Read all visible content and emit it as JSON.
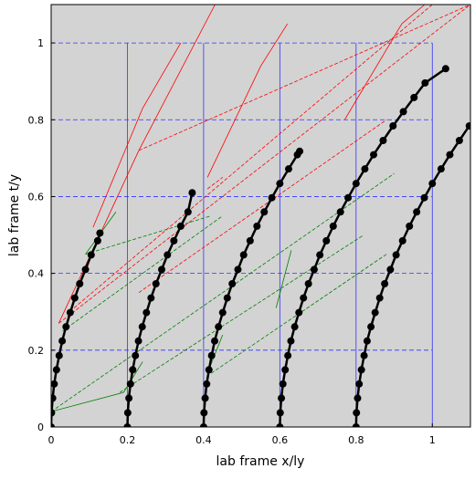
{
  "chart_data": {
    "type": "line",
    "title": "",
    "xlabel": "lab frame x/ly",
    "ylabel": "lab frame t/y",
    "xlim": [
      0,
      1.1
    ],
    "ylim": [
      0,
      1.1
    ],
    "x_ticks": [
      "0",
      "0.2",
      "0.4",
      "0.6",
      "0.8",
      "1"
    ],
    "y_ticks": [
      "0",
      "0.2",
      "0.4",
      "0.6",
      "0.8",
      "1"
    ],
    "x_tick_values": [
      0,
      0.2,
      0.4,
      0.6,
      0.8,
      1
    ],
    "y_tick_values": [
      0,
      0.2,
      0.4,
      0.6,
      0.8,
      1
    ],
    "grid": {
      "vertical_lines_x": [
        0.2,
        0.4,
        0.6,
        0.8,
        1
      ],
      "horizontal_lines_y": [
        0.2,
        0.4,
        0.6,
        0.8,
        1
      ],
      "grid_range": [
        0,
        1
      ],
      "color": "#3333ff"
    },
    "colors": {
      "plot_background": "#d3d3d3",
      "worldline": "#000000",
      "marker": "#000000",
      "red": "#ff0000",
      "green": "#008000"
    },
    "worldlines": [
      {
        "points": [
          [
            0,
            0
          ],
          [
            0.001,
            0.037
          ],
          [
            0.004,
            0.075
          ],
          [
            0.008,
            0.112
          ],
          [
            0.014,
            0.149
          ],
          [
            0.021,
            0.186
          ],
          [
            0.029,
            0.224
          ],
          [
            0.039,
            0.261
          ],
          [
            0.05,
            0.298
          ],
          [
            0.062,
            0.336
          ],
          [
            0.075,
            0.373
          ],
          [
            0.09,
            0.41
          ],
          [
            0.105,
            0.448
          ],
          [
            0.122,
            0.485
          ],
          [
            0.128,
            0.505
          ]
        ]
      },
      {
        "points": [
          [
            0.2,
            0
          ],
          [
            0.201,
            0.037
          ],
          [
            0.204,
            0.075
          ],
          [
            0.208,
            0.112
          ],
          [
            0.214,
            0.149
          ],
          [
            0.221,
            0.186
          ],
          [
            0.229,
            0.224
          ],
          [
            0.239,
            0.261
          ],
          [
            0.25,
            0.298
          ],
          [
            0.262,
            0.336
          ],
          [
            0.275,
            0.373
          ],
          [
            0.29,
            0.41
          ],
          [
            0.305,
            0.448
          ],
          [
            0.322,
            0.485
          ],
          [
            0.34,
            0.523
          ],
          [
            0.359,
            0.56
          ],
          [
            0.37,
            0.61
          ]
        ]
      },
      {
        "points": [
          [
            0.4,
            0
          ],
          [
            0.401,
            0.037
          ],
          [
            0.404,
            0.075
          ],
          [
            0.408,
            0.112
          ],
          [
            0.414,
            0.149
          ],
          [
            0.421,
            0.186
          ],
          [
            0.429,
            0.224
          ],
          [
            0.439,
            0.261
          ],
          [
            0.45,
            0.298
          ],
          [
            0.462,
            0.336
          ],
          [
            0.475,
            0.373
          ],
          [
            0.49,
            0.41
          ],
          [
            0.505,
            0.448
          ],
          [
            0.522,
            0.485
          ],
          [
            0.54,
            0.523
          ],
          [
            0.559,
            0.56
          ],
          [
            0.579,
            0.597
          ],
          [
            0.6,
            0.634
          ],
          [
            0.623,
            0.672
          ],
          [
            0.646,
            0.709
          ],
          [
            0.652,
            0.718
          ]
        ]
      },
      {
        "points": [
          [
            0.6,
            0
          ],
          [
            0.601,
            0.037
          ],
          [
            0.604,
            0.075
          ],
          [
            0.608,
            0.112
          ],
          [
            0.614,
            0.149
          ],
          [
            0.621,
            0.186
          ],
          [
            0.629,
            0.224
          ],
          [
            0.639,
            0.261
          ],
          [
            0.65,
            0.298
          ],
          [
            0.662,
            0.336
          ],
          [
            0.675,
            0.373
          ],
          [
            0.69,
            0.41
          ],
          [
            0.705,
            0.448
          ],
          [
            0.722,
            0.485
          ],
          [
            0.74,
            0.523
          ],
          [
            0.759,
            0.56
          ],
          [
            0.779,
            0.597
          ],
          [
            0.8,
            0.634
          ],
          [
            0.823,
            0.672
          ],
          [
            0.846,
            0.709
          ],
          [
            0.871,
            0.746
          ],
          [
            0.897,
            0.784
          ],
          [
            0.924,
            0.821
          ],
          [
            0.952,
            0.858
          ],
          [
            0.981,
            0.896
          ],
          [
            1.035,
            0.933
          ]
        ]
      }
    ],
    "worldlines_extra": [
      {
        "points": [
          [
            0.8,
            0
          ],
          [
            0.801,
            0.037
          ],
          [
            0.804,
            0.075
          ],
          [
            0.808,
            0.112
          ],
          [
            0.814,
            0.149
          ],
          [
            0.821,
            0.186
          ],
          [
            0.829,
            0.224
          ],
          [
            0.839,
            0.261
          ],
          [
            0.85,
            0.298
          ],
          [
            0.862,
            0.336
          ],
          [
            0.875,
            0.373
          ],
          [
            0.89,
            0.41
          ],
          [
            0.905,
            0.448
          ],
          [
            0.922,
            0.485
          ],
          [
            0.94,
            0.523
          ],
          [
            0.959,
            0.56
          ],
          [
            0.979,
            0.597
          ],
          [
            1.0,
            0.634
          ],
          [
            1.023,
            0.672
          ],
          [
            1.046,
            0.709
          ],
          [
            1.071,
            0.746
          ],
          [
            1.097,
            0.784
          ],
          [
            1.124,
            0.821
          ],
          [
            1.152,
            0.858
          ]
        ]
      }
    ],
    "red_dashed_lines": [
      [
        [
          0.02,
          0.27
        ],
        [
          1.1,
          1.1
        ]
      ],
      [
        [
          0.06,
          0.31
        ],
        [
          1.0,
          1.1
        ]
      ],
      [
        [
          0.23,
          0.35
        ],
        [
          0.88,
          0.8
        ]
      ],
      [
        [
          0.23,
          0.72
        ],
        [
          1.1,
          1.1
        ]
      ],
      [
        [
          0.41,
          0.62
        ],
        [
          0.45,
          0.65
        ]
      ]
    ],
    "red_solid_lines": [
      [
        [
          0.02,
          0.27
        ],
        [
          0.23,
          0.72
        ]
      ],
      [
        [
          0.23,
          0.72
        ],
        [
          0.43,
          1.1
        ]
      ],
      [
        [
          0.11,
          0.52
        ],
        [
          0.24,
          0.83
        ]
      ],
      [
        [
          0.24,
          0.83
        ],
        [
          0.34,
          1.0
        ]
      ],
      [
        [
          0.41,
          0.65
        ],
        [
          0.55,
          0.94
        ]
      ],
      [
        [
          0.55,
          0.94
        ],
        [
          0.62,
          1.05
        ]
      ],
      [
        [
          0.77,
          0.8
        ],
        [
          0.92,
          1.05
        ]
      ],
      [
        [
          0.92,
          1.05
        ],
        [
          0.98,
          1.1
        ]
      ]
    ],
    "green_dashed_lines": [
      [
        [
          0.03,
          0.25
        ],
        [
          0.45,
          0.55
        ]
      ],
      [
        [
          0.18,
          0.09
        ],
        [
          0.82,
          0.5
        ]
      ],
      [
        [
          0.0,
          0.04
        ],
        [
          0.9,
          0.66
        ]
      ],
      [
        [
          0.42,
          0.14
        ],
        [
          0.88,
          0.45
        ]
      ],
      [
        [
          0.09,
          0.45
        ],
        [
          0.42,
          0.55
        ]
      ]
    ],
    "green_solid_lines": [
      [
        [
          0.0,
          0.04
        ],
        [
          0.19,
          0.09
        ]
      ],
      [
        [
          0.19,
          0.09
        ],
        [
          0.24,
          0.17
        ]
      ],
      [
        [
          0.41,
          0.14
        ],
        [
          0.45,
          0.24
        ]
      ],
      [
        [
          0.09,
          0.45
        ],
        [
          0.17,
          0.56
        ]
      ],
      [
        [
          0.59,
          0.31
        ],
        [
          0.63,
          0.46
        ]
      ]
    ]
  }
}
